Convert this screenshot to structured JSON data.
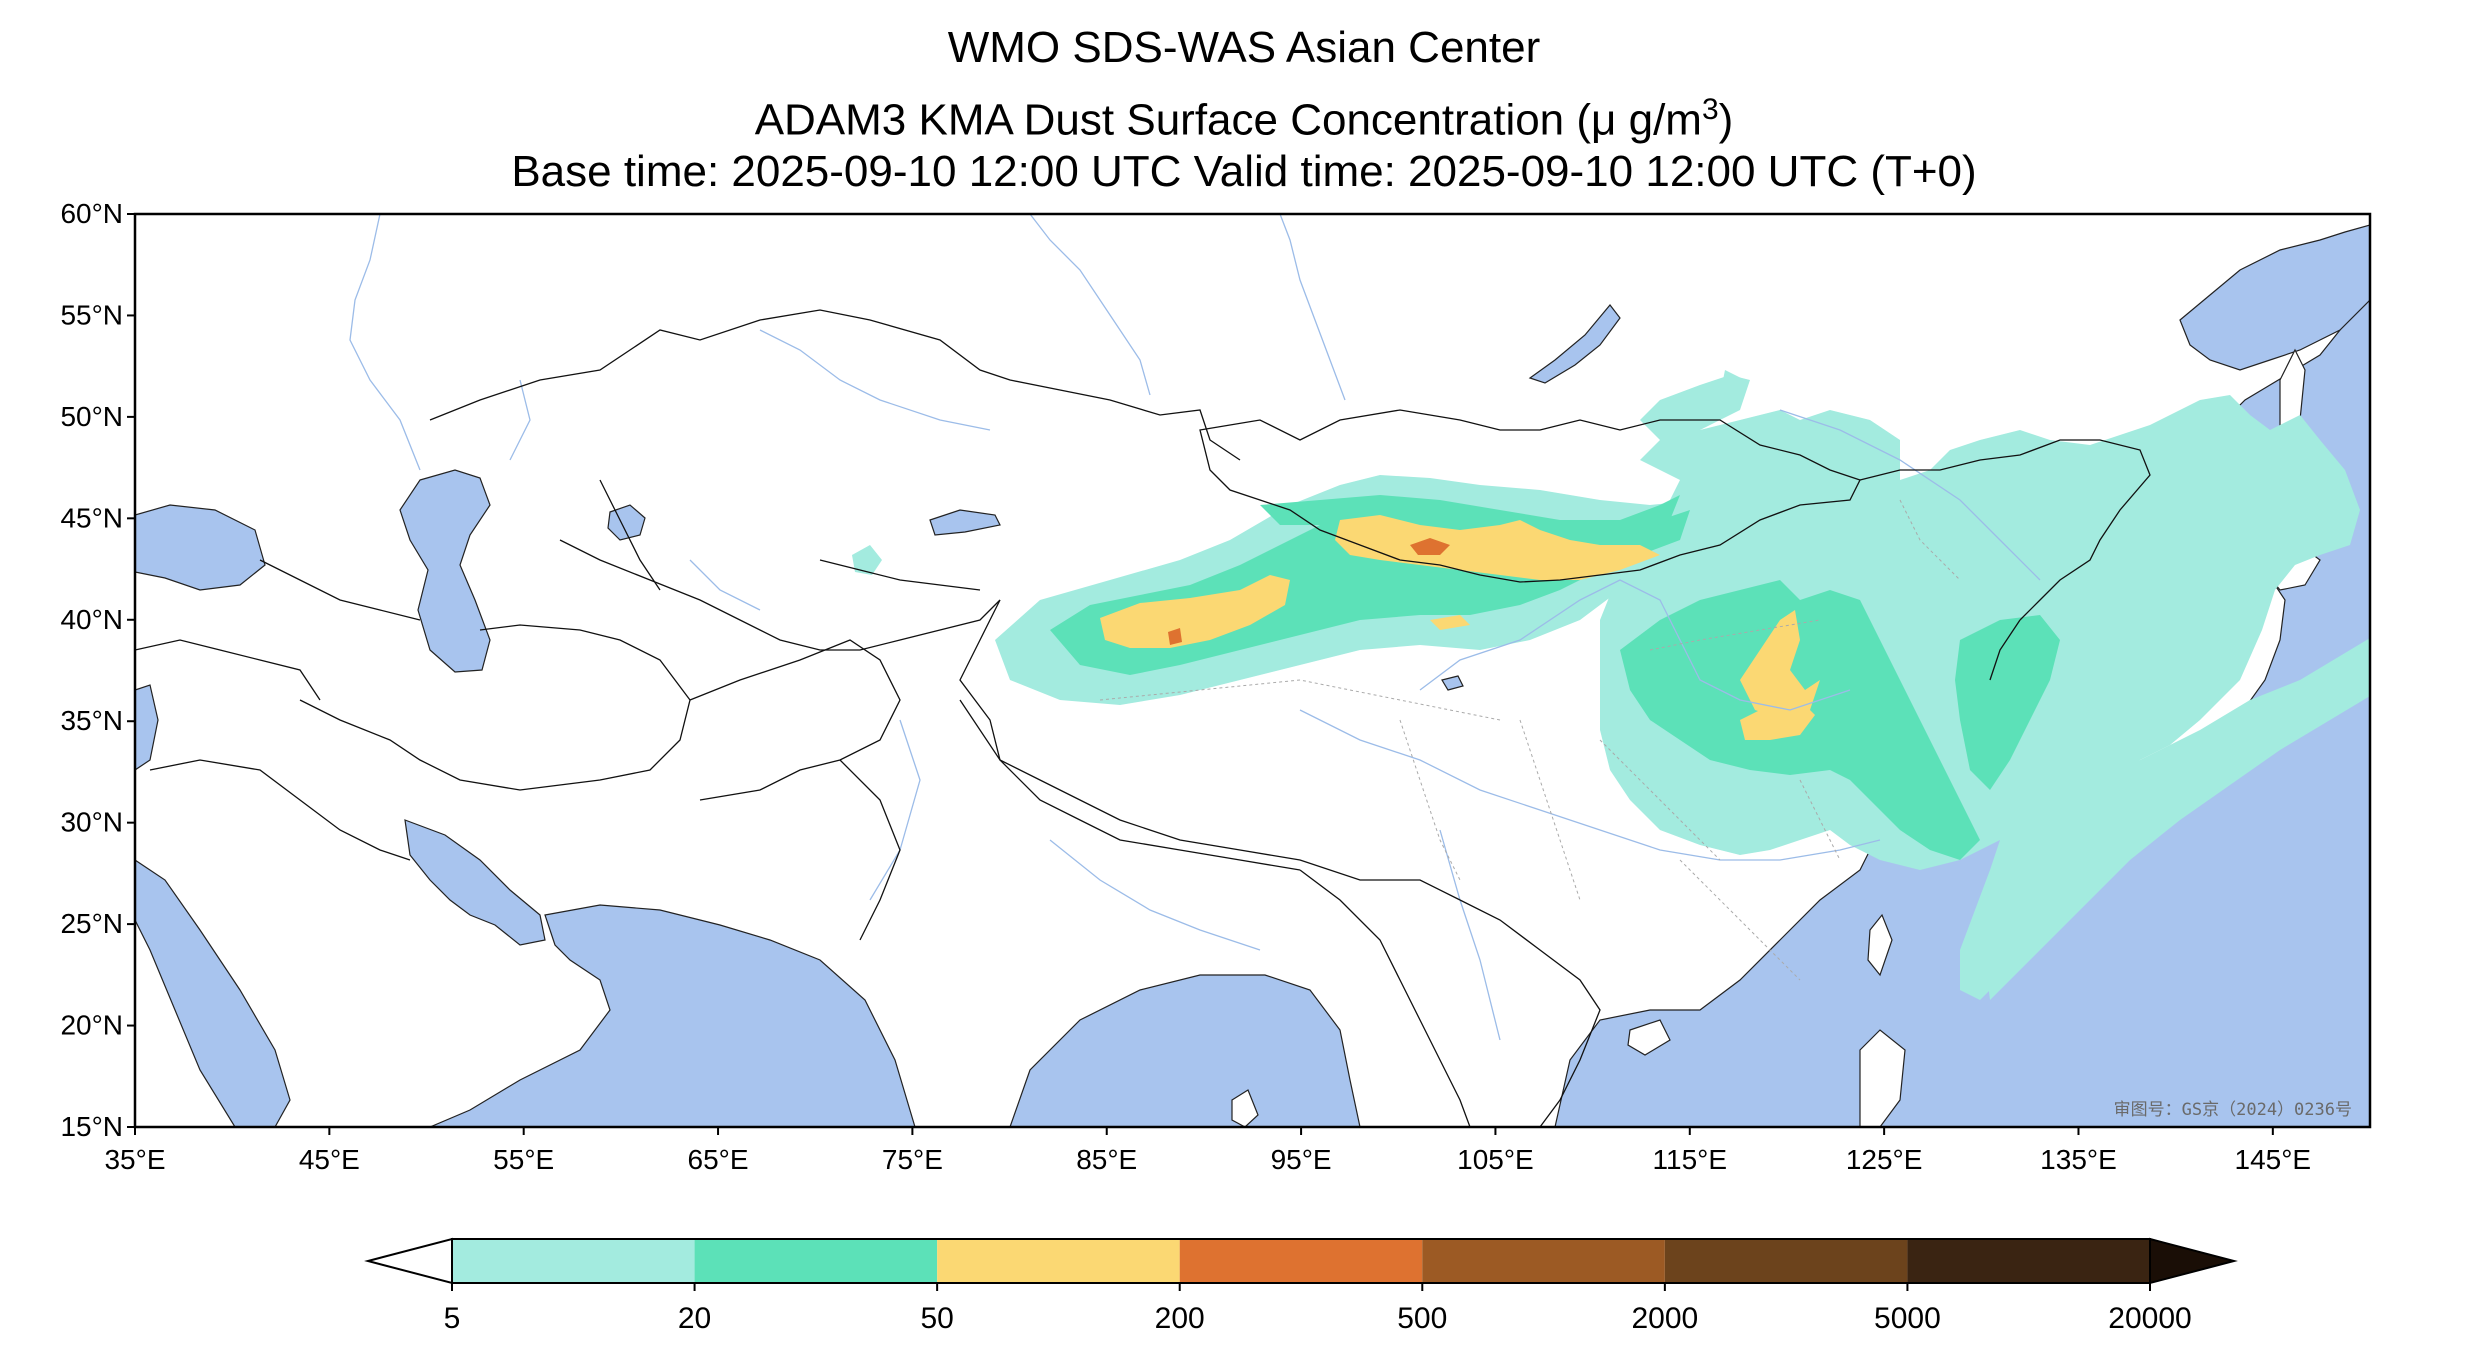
{
  "title": {
    "line1": "WMO SDS-WAS Asian Center",
    "line2_prefix": "ADAM3 KMA Dust Surface Concentration (",
    "line2_unit_mu": "μ",
    "line2_unit_g": " g/m",
    "line2_unit_exp": "3",
    "line2_suffix": ")",
    "line3": "Base time: 2025-09-10 12:00 UTC Valid time: 2025-09-10 12:00 UTC (T+0)"
  },
  "map": {
    "lon_range": [
      35,
      150
    ],
    "lat_range": [
      15,
      60
    ],
    "land_color": "#ffffff",
    "water_color": "#a8c4ee",
    "lat_ticks": [
      "60°N",
      "55°N",
      "50°N",
      "45°N",
      "40°N",
      "35°N",
      "30°N",
      "25°N",
      "20°N",
      "15°N"
    ],
    "lon_ticks": [
      "35°E",
      "45°E",
      "55°E",
      "65°E",
      "75°E",
      "85°E",
      "95°E",
      "105°E",
      "115°E",
      "125°E",
      "135°E",
      "145°E"
    ],
    "approval_stamp": "审图号：GS京（2024）0236号"
  },
  "colorbar": {
    "levels": [
      "5",
      "20",
      "50",
      "200",
      "500",
      "2000",
      "5000",
      "20000"
    ],
    "colors": [
      "#a3ebdf",
      "#5ce1b8",
      "#fbd873",
      "#de7230",
      "#9c5a24",
      "#6c431c",
      "#3a2412"
    ],
    "under_color": "#ffffff",
    "over_color": "#1a0e06"
  }
}
